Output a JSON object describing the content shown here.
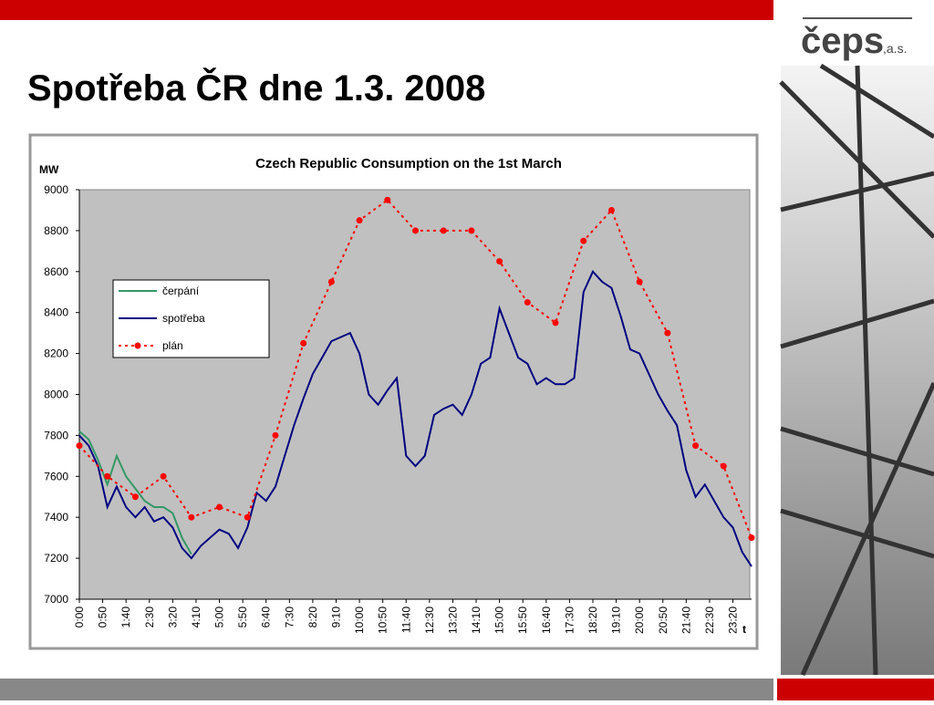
{
  "slide_title": "Spotřeba ČR dne 1.3. 2008",
  "logo": {
    "name": "čeps",
    "suffix": ",a.s."
  },
  "chart_data": {
    "type": "line",
    "title": "Czech Republic Consumption on the 1st March",
    "y_label": "MW",
    "x_label": "t",
    "xlim": [
      0,
      1440
    ],
    "xticks": [
      {
        "value": 0,
        "label": "0:00"
      },
      {
        "value": 50,
        "label": "0:50"
      },
      {
        "value": 100,
        "label": "1:40"
      },
      {
        "value": 150,
        "label": "2:30"
      },
      {
        "value": 200,
        "label": "3:20"
      },
      {
        "value": 250,
        "label": "4:10"
      },
      {
        "value": 300,
        "label": "5:00"
      },
      {
        "value": 350,
        "label": "5:50"
      },
      {
        "value": 400,
        "label": "6:40"
      },
      {
        "value": 450,
        "label": "7:30"
      },
      {
        "value": 500,
        "label": "8:20"
      },
      {
        "value": 550,
        "label": "9:10"
      },
      {
        "value": 600,
        "label": "10:00"
      },
      {
        "value": 650,
        "label": "10:50"
      },
      {
        "value": 700,
        "label": "11:40"
      },
      {
        "value": 750,
        "label": "12:30"
      },
      {
        "value": 800,
        "label": "13:20"
      },
      {
        "value": 850,
        "label": "14:10"
      },
      {
        "value": 900,
        "label": "15:00"
      },
      {
        "value": 950,
        "label": "15:50"
      },
      {
        "value": 1000,
        "label": "16:40"
      },
      {
        "value": 1050,
        "label": "17:30"
      },
      {
        "value": 1100,
        "label": "18:20"
      },
      {
        "value": 1150,
        "label": "19:10"
      },
      {
        "value": 1200,
        "label": "20:00"
      },
      {
        "value": 1250,
        "label": "20:50"
      },
      {
        "value": 1300,
        "label": "21:40"
      },
      {
        "value": 1350,
        "label": "22:30"
      },
      {
        "value": 1400,
        "label": "23:20"
      }
    ],
    "ylim": [
      7000,
      9000
    ],
    "yticks": [
      7000,
      7200,
      7400,
      7600,
      7800,
      8000,
      8200,
      8400,
      8600,
      8800,
      9000
    ],
    "plot_background": "#c0c0c0",
    "legend": "upper left",
    "series": [
      {
        "name": "čerpání",
        "color": "#339966",
        "dashed": false,
        "markers": false,
        "x": [
          0,
          20,
          40,
          60,
          80,
          100,
          120,
          140,
          160,
          180,
          200,
          220,
          240
        ],
        "values": [
          7820,
          7780,
          7680,
          7560,
          7700,
          7600,
          7540,
          7480,
          7450,
          7450,
          7420,
          7300,
          7220
        ]
      },
      {
        "name": "spotřeba",
        "color": "#000080",
        "dashed": false,
        "markers": false,
        "x": [
          0,
          20,
          40,
          60,
          80,
          100,
          120,
          140,
          160,
          180,
          200,
          220,
          240,
          260,
          280,
          300,
          320,
          340,
          360,
          380,
          400,
          420,
          440,
          460,
          480,
          500,
          520,
          540,
          560,
          580,
          600,
          620,
          640,
          660,
          680,
          700,
          720,
          740,
          760,
          780,
          800,
          820,
          840,
          860,
          880,
          900,
          920,
          940,
          960,
          980,
          1000,
          1020,
          1040,
          1060,
          1080,
          1100,
          1120,
          1140,
          1160,
          1180,
          1200,
          1220,
          1240,
          1260,
          1280,
          1300,
          1320,
          1340,
          1360,
          1380,
          1400,
          1420,
          1440
        ],
        "values": [
          7800,
          7750,
          7650,
          7450,
          7550,
          7450,
          7400,
          7450,
          7380,
          7400,
          7350,
          7250,
          7200,
          7260,
          7300,
          7340,
          7320,
          7250,
          7350,
          7520,
          7480,
          7550,
          7700,
          7850,
          7980,
          8100,
          8180,
          8260,
          8280,
          8300,
          8200,
          8000,
          7950,
          8020,
          8080,
          7700,
          7650,
          7700,
          7900,
          7930,
          7950,
          7900,
          8000,
          8150,
          8180,
          8420,
          8300,
          8180,
          8150,
          8050,
          8080,
          8050,
          8050,
          8080,
          8500,
          8600,
          8550,
          8520,
          8380,
          8220,
          8200,
          8100,
          8000,
          7920,
          7850,
          7630,
          7500,
          7560,
          7480,
          7400,
          7350,
          7230,
          7160
        ]
      },
      {
        "name": "plán",
        "color": "#ff0000",
        "dashed": true,
        "markers": true,
        "x": [
          0,
          60,
          120,
          180,
          240,
          300,
          360,
          420,
          480,
          540,
          600,
          660,
          720,
          780,
          840,
          900,
          960,
          1020,
          1080,
          1140,
          1200,
          1260,
          1320,
          1380,
          1440
        ],
        "values": [
          7750,
          7600,
          7500,
          7600,
          7400,
          7450,
          7400,
          7800,
          8250,
          8550,
          8850,
          8950,
          8800,
          8800,
          8800,
          8650,
          8450,
          8350,
          8750,
          8900,
          8550,
          8300,
          7750,
          7650,
          7300
        ]
      }
    ]
  }
}
